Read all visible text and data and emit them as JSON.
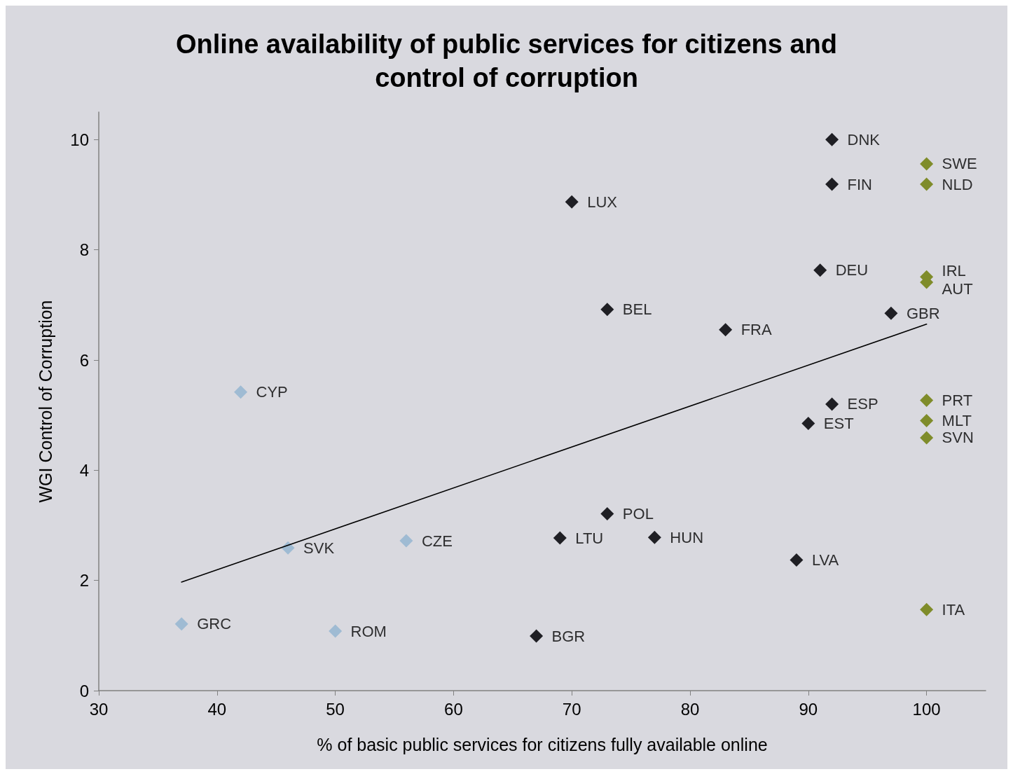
{
  "chart_data": {
    "type": "scatter",
    "title": "Online availability of public services for citizens and\ncontrol of corruption",
    "xlabel": "% of basic public services for citizens fully available online",
    "ylabel": "WGI Control of Corruption",
    "xlim": [
      30,
      105
    ],
    "xticks": [
      30,
      40,
      50,
      60,
      70,
      80,
      90,
      100
    ],
    "ylim": [
      0,
      10.5
    ],
    "yticks": [
      0,
      2,
      4,
      6,
      8,
      10
    ],
    "marker": "diamond",
    "series": [
      {
        "color": "#9fbbd3",
        "x": [
          37,
          42,
          46,
          50,
          56
        ],
        "values": [
          1.21,
          5.42,
          2.59,
          1.08,
          2.72
        ]
      },
      {
        "color": "#1f1f24",
        "x": [
          70,
          73,
          83,
          91,
          92,
          92,
          97,
          92,
          90,
          73,
          69,
          77,
          89,
          67
        ],
        "values": [
          8.87,
          6.92,
          6.55,
          7.63,
          10,
          9.19,
          6.85,
          5.2,
          4.85,
          3.21,
          2.77,
          2.78,
          2.37,
          0.99
        ]
      },
      {
        "color": "#7f8c2a",
        "x": [
          100,
          100,
          100,
          100,
          100,
          100,
          100,
          100
        ],
        "values": [
          9.56,
          9.19,
          7.51,
          7.41,
          5.27,
          4.9,
          4.59,
          1.47
        ]
      },
      {
        "type": "line",
        "color": "#000000",
        "line_style": "solid",
        "marker": "none",
        "x": [
          37,
          100
        ],
        "values": [
          1.97,
          6.65
        ]
      }
    ],
    "annotations": [
      {
        "text": "GRC",
        "x": 37,
        "y": 1.21
      },
      {
        "text": "CYP",
        "x": 42,
        "y": 5.42
      },
      {
        "text": "SVK",
        "x": 46,
        "y": 2.59
      },
      {
        "text": "ROM",
        "x": 50,
        "y": 1.08
      },
      {
        "text": "CZE",
        "x": 56,
        "y": 2.72
      },
      {
        "text": "LUX",
        "x": 70,
        "y": 8.87
      },
      {
        "text": "BEL",
        "x": 73,
        "y": 6.92
      },
      {
        "text": "FRA",
        "x": 83,
        "y": 6.55
      },
      {
        "text": "DEU",
        "x": 91,
        "y": 7.63
      },
      {
        "text": "DNK",
        "x": 92,
        "y": 10
      },
      {
        "text": "FIN",
        "x": 92,
        "y": 9.19
      },
      {
        "text": "GBR",
        "x": 97,
        "y": 6.85
      },
      {
        "text": "ESP",
        "x": 92,
        "y": 5.2
      },
      {
        "text": "EST",
        "x": 90,
        "y": 4.85
      },
      {
        "text": "POL",
        "x": 73,
        "y": 3.21
      },
      {
        "text": "LTU",
        "x": 69,
        "y": 2.77
      },
      {
        "text": "HUN",
        "x": 77,
        "y": 2.78
      },
      {
        "text": "LVA",
        "x": 89,
        "y": 2.37
      },
      {
        "text": "BGR",
        "x": 67,
        "y": 0.99
      },
      {
        "text": "SWE",
        "x": 100,
        "y": 9.56
      },
      {
        "text": "NLD",
        "x": 100,
        "y": 9.19
      },
      {
        "text": "IRL",
        "x": 100,
        "y": 7.51
      },
      {
        "text": "AUT",
        "x": 100,
        "y": 7.41
      },
      {
        "text": "PRT",
        "x": 100,
        "y": 5.27
      },
      {
        "text": "MLT",
        "x": 100,
        "y": 4.9
      },
      {
        "text": "SVN",
        "x": 100,
        "y": 4.59
      },
      {
        "text": "ITA",
        "x": 100,
        "y": 1.47
      }
    ]
  }
}
